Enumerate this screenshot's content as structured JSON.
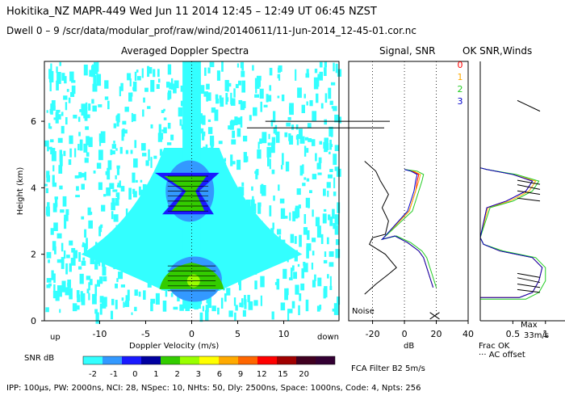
{
  "header": {
    "line1": "Hokitika_NZ   MAPR-449   Wed Jun 11 2014 12:45 – 12:49 UT 06:45 NZST",
    "line2": "Dwell   0 –   9    /scr/data/modular_prof/raw/wind/20140611/11-Jun-2014_12-45-01.cor.nc"
  },
  "panels": {
    "spectra_title": "Averaged Doppler Spectra",
    "signal_title": "Signal, SNR",
    "ok_title": "OK SNR,Winds"
  },
  "labels": {
    "up": "up",
    "down": "down",
    "snr_db": "SNR dB",
    "noise": "Noise",
    "fca": "FCA Filter B2   5m/s",
    "max": "Max",
    "max_speed": "33m/s",
    "frac_ok": "Frac OK",
    "ac_offset": "··· AC offset",
    "footer": "IPP: 100μs,   PW: 2000ns,   NCI:  28,   NSpec: 10,  NHts: 50,  Dly: 2500ns,   Space: 1000ns,   Code: 4,   Npts: 256"
  },
  "colors": {
    "background_cyan": "#33ffff",
    "snr_scale": [
      "#33ffff",
      "#3399ff",
      "#1a1aff",
      "#0000a0",
      "#33cc00",
      "#99ff00",
      "#ffff00",
      "#ffaa00",
      "#ff6600",
      "#ff0000",
      "#a00000",
      "#400020",
      "#330033"
    ]
  },
  "dwell_legend": [
    {
      "label": "0",
      "color": "#ff0000"
    },
    {
      "label": "1",
      "color": "#ffaa00"
    },
    {
      "label": "2",
      "color": "#22cc22"
    },
    {
      "label": "3",
      "color": "#0000cc"
    }
  ],
  "chart_data": [
    {
      "type": "heatmap",
      "title": "Averaged Doppler Spectra",
      "xlabel": "Doppler Velocity (m/s)",
      "ylabel": "Height (km)",
      "xlim": [
        -16,
        16
      ],
      "ylim": [
        0,
        7.8
      ],
      "xticks": [
        -10,
        -5,
        0,
        5,
        10
      ],
      "yticks": [
        0,
        2,
        4,
        6
      ],
      "colorbar": {
        "label": "SNR dB",
        "ticks": [
          "-2",
          "-1",
          "0",
          "1",
          "2",
          "3",
          "6",
          "9",
          "12",
          "15",
          "20"
        ]
      },
      "grid": false
    },
    {
      "type": "line",
      "title": "Signal, SNR",
      "xlabel": "dB",
      "xlim": [
        -35,
        40
      ],
      "ylim": [
        0,
        7.8
      ],
      "xticks": [
        -20,
        0,
        20,
        40
      ],
      "series": [
        {
          "name": "0",
          "color": "#ff0000",
          "points": [
            [
              18,
              1.0
            ],
            [
              16,
              1.3
            ],
            [
              14,
              1.6
            ],
            [
              12,
              1.9
            ],
            [
              9,
              2.1
            ],
            [
              2,
              2.35
            ],
            [
              -6,
              2.55
            ],
            [
              -14,
              2.45
            ],
            [
              3,
              3.3
            ],
            [
              5,
              3.6
            ],
            [
              7,
              3.9
            ],
            [
              8,
              4.2
            ],
            [
              9,
              4.4
            ],
            [
              5,
              4.5
            ],
            [
              0,
              4.55
            ]
          ]
        },
        {
          "name": "1",
          "color": "#ffaa00",
          "points": [
            [
              18,
              1.0
            ],
            [
              16,
              1.3
            ],
            [
              14,
              1.6
            ],
            [
              12,
              1.9
            ],
            [
              9,
              2.1
            ],
            [
              2,
              2.35
            ],
            [
              -6,
              2.55
            ],
            [
              -14,
              2.45
            ],
            [
              3,
              3.3
            ],
            [
              5,
              3.6
            ],
            [
              7,
              3.9
            ],
            [
              9,
              4.2
            ],
            [
              10,
              4.4
            ],
            [
              6,
              4.5
            ],
            [
              0,
              4.55
            ]
          ]
        },
        {
          "name": "2",
          "color": "#22cc22",
          "points": [
            [
              20,
              1.0
            ],
            [
              18,
              1.3
            ],
            [
              16,
              1.6
            ],
            [
              14,
              1.9
            ],
            [
              11,
              2.1
            ],
            [
              4,
              2.35
            ],
            [
              -5,
              2.55
            ],
            [
              -14,
              2.45
            ],
            [
              5,
              3.3
            ],
            [
              7,
              3.6
            ],
            [
              9,
              3.9
            ],
            [
              11,
              4.2
            ],
            [
              12,
              4.4
            ],
            [
              8,
              4.5
            ],
            [
              0,
              4.55
            ]
          ]
        },
        {
          "name": "3",
          "color": "#0000cc",
          "points": [
            [
              18,
              1.0
            ],
            [
              16,
              1.3
            ],
            [
              14,
              1.6
            ],
            [
              12,
              1.9
            ],
            [
              9,
              2.1
            ],
            [
              2,
              2.35
            ],
            [
              -6,
              2.55
            ],
            [
              -14,
              2.45
            ],
            [
              2,
              3.3
            ],
            [
              4,
              3.6
            ],
            [
              6,
              3.9
            ],
            [
              7,
              4.2
            ],
            [
              8,
              4.4
            ],
            [
              4,
              4.5
            ],
            [
              0,
              4.55
            ]
          ]
        }
      ]
    },
    {
      "type": "line",
      "title": "OK SNR,Winds",
      "xlabel": "Frac OK",
      "xlim": [
        0,
        1.3
      ],
      "ylim": [
        0,
        7.8
      ],
      "xticks": [
        "0.5",
        "1"
      ],
      "series": [
        {
          "name": "0",
          "color": "#ff0000",
          "points": [
            [
              0,
              0.7
            ],
            [
              0.6,
              0.7
            ],
            [
              0.8,
              0.85
            ],
            [
              0.9,
              1.2
            ],
            [
              0.95,
              1.6
            ],
            [
              0.8,
              1.9
            ],
            [
              0.3,
              2.1
            ],
            [
              0.05,
              2.3
            ],
            [
              0,
              2.5
            ],
            [
              0.1,
              3.4
            ],
            [
              0.4,
              3.6
            ],
            [
              0.7,
              3.9
            ],
            [
              0.8,
              4.2
            ],
            [
              0.5,
              4.4
            ],
            [
              0.1,
              4.55
            ],
            [
              0,
              4.6
            ]
          ]
        },
        {
          "name": "1",
          "color": "#ffaa00",
          "points": [
            [
              0,
              0.7
            ],
            [
              0.6,
              0.7
            ],
            [
              0.8,
              0.85
            ],
            [
              0.9,
              1.2
            ],
            [
              0.95,
              1.6
            ],
            [
              0.8,
              1.9
            ],
            [
              0.3,
              2.1
            ],
            [
              0.05,
              2.3
            ],
            [
              0,
              2.5
            ],
            [
              0.12,
              3.4
            ],
            [
              0.45,
              3.6
            ],
            [
              0.75,
              3.9
            ],
            [
              0.85,
              4.2
            ],
            [
              0.5,
              4.4
            ],
            [
              0.1,
              4.55
            ],
            [
              0,
              4.6
            ]
          ]
        },
        {
          "name": "2",
          "color": "#22cc22",
          "points": [
            [
              0,
              0.65
            ],
            [
              0.7,
              0.65
            ],
            [
              0.9,
              0.85
            ],
            [
              1.0,
              1.2
            ],
            [
              1.0,
              1.6
            ],
            [
              0.85,
              1.9
            ],
            [
              0.35,
              2.1
            ],
            [
              0.05,
              2.3
            ],
            [
              0,
              2.5
            ],
            [
              0.15,
              3.4
            ],
            [
              0.5,
              3.6
            ],
            [
              0.8,
              3.9
            ],
            [
              0.9,
              4.2
            ],
            [
              0.55,
              4.4
            ],
            [
              0.1,
              4.55
            ],
            [
              0,
              4.6
            ]
          ]
        },
        {
          "name": "3",
          "color": "#0000cc",
          "points": [
            [
              0,
              0.7
            ],
            [
              0.6,
              0.7
            ],
            [
              0.8,
              0.85
            ],
            [
              0.9,
              1.2
            ],
            [
              0.95,
              1.6
            ],
            [
              0.8,
              1.9
            ],
            [
              0.3,
              2.1
            ],
            [
              0.05,
              2.3
            ],
            [
              0,
              2.5
            ],
            [
              0.1,
              3.4
            ],
            [
              0.4,
              3.6
            ],
            [
              0.7,
              3.9
            ],
            [
              0.8,
              4.2
            ],
            [
              0.5,
              4.4
            ],
            [
              0.1,
              4.55
            ],
            [
              0,
              4.6
            ]
          ]
        }
      ]
    }
  ]
}
